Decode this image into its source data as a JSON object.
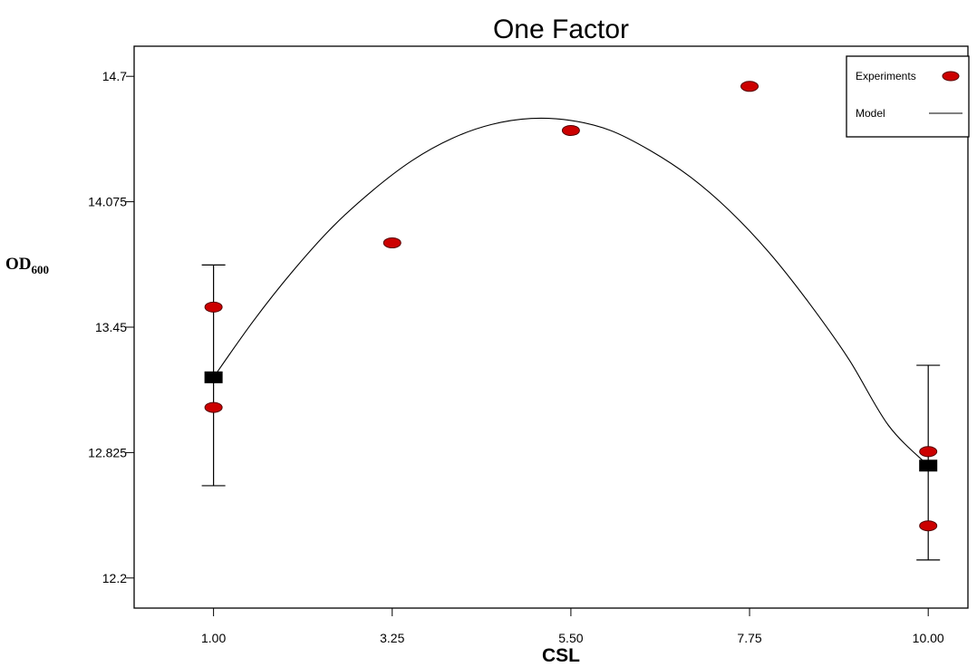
{
  "chart_data": {
    "type": "scatter",
    "title": "One Factor",
    "xlabel": "CSL",
    "ylabel": "OD",
    "ylabel_subscript": "600",
    "xlim": [
      0.0,
      10.5
    ],
    "ylim": [
      12.05,
      14.85
    ],
    "x_ticks": [
      1.0,
      3.25,
      5.5,
      7.75,
      10.0
    ],
    "x_tick_labels": [
      "1.00",
      "3.25",
      "5.50",
      "7.75",
      "10.00"
    ],
    "y_ticks": [
      12.2,
      12.825,
      13.45,
      14.075,
      14.7
    ],
    "y_tick_labels": [
      "12.2",
      "12.825",
      "13.45",
      "14.075",
      "14.7"
    ],
    "grid": false,
    "legend_position": "top-right",
    "series": [
      {
        "name": "Experiments",
        "kind": "points",
        "color": "#cc0000",
        "x": [
          1.0,
          1.0,
          3.25,
          5.5,
          7.75,
          10.0,
          10.0
        ],
        "y": [
          13.55,
          13.05,
          13.87,
          14.43,
          14.65,
          12.83,
          12.46
        ]
      },
      {
        "name": "Model",
        "kind": "curve",
        "color": "#000000",
        "x": [
          1.0,
          1.5,
          2.0,
          2.5,
          3.0,
          3.5,
          4.0,
          4.5,
          5.0,
          5.5,
          6.0,
          6.5,
          7.0,
          7.5,
          8.0,
          8.5,
          9.0,
          9.5,
          10.0
        ],
        "y": [
          13.2,
          13.48,
          13.73,
          13.95,
          14.13,
          14.28,
          14.39,
          14.46,
          14.49,
          14.48,
          14.43,
          14.33,
          14.2,
          14.03,
          13.82,
          13.57,
          13.29,
          12.96,
          12.76
        ]
      }
    ],
    "model_points": {
      "x": [
        1.0,
        10.0
      ],
      "y": [
        13.2,
        12.76
      ],
      "error_low": [
        12.66,
        12.29
      ],
      "error_high": [
        13.76,
        13.26
      ]
    }
  }
}
